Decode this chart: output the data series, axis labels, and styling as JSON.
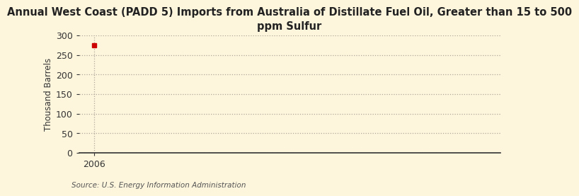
{
  "title": "Annual West Coast (PADD 5) Imports from Australia of Distillate Fuel Oil, Greater than 15 to 500\nppm Sulfur",
  "ylabel": "Thousand Barrels",
  "source": "Source: U.S. Energy Information Administration",
  "x_data": [
    2006
  ],
  "y_data": [
    274
  ],
  "marker_color": "#cc0000",
  "marker_size": 4,
  "ylim": [
    0,
    300
  ],
  "yticks": [
    0,
    50,
    100,
    150,
    200,
    250,
    300
  ],
  "xlim": [
    2005.4,
    2022
  ],
  "xticks": [
    2006
  ],
  "background_color": "#fdf5dc",
  "grid_color": "#b0a898",
  "spine_color": "#333333",
  "title_fontsize": 10.5,
  "ylabel_fontsize": 8.5,
  "tick_fontsize": 9,
  "source_fontsize": 7.5
}
